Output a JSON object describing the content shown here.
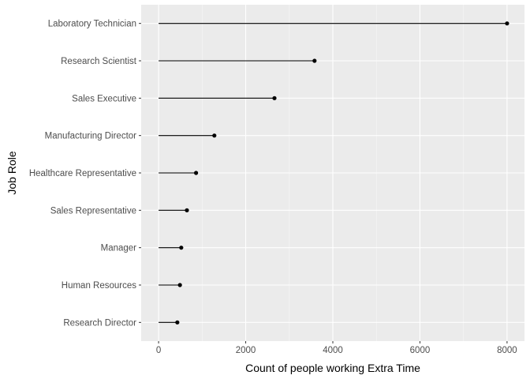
{
  "chart_data": {
    "type": "lollipop",
    "orientation": "horizontal",
    "xlabel": "Count of people working Extra Time",
    "ylabel": "Job Role",
    "xlim": [
      -400,
      8400
    ],
    "x_ticks": [
      0,
      2000,
      4000,
      6000,
      8000
    ],
    "grid": true,
    "categories": [
      "Laboratory Technician",
      "Research Scientist",
      "Sales Executive",
      "Manufacturing Director",
      "Healthcare Representative",
      "Sales Representative",
      "Manager",
      "Human Resources",
      "Research Director"
    ],
    "values": [
      8000,
      3580,
      2660,
      1280,
      860,
      650,
      520,
      490,
      430
    ],
    "colors": {
      "panel": "#ebebeb",
      "grid_major": "#ffffff",
      "mark": "#000000"
    }
  }
}
